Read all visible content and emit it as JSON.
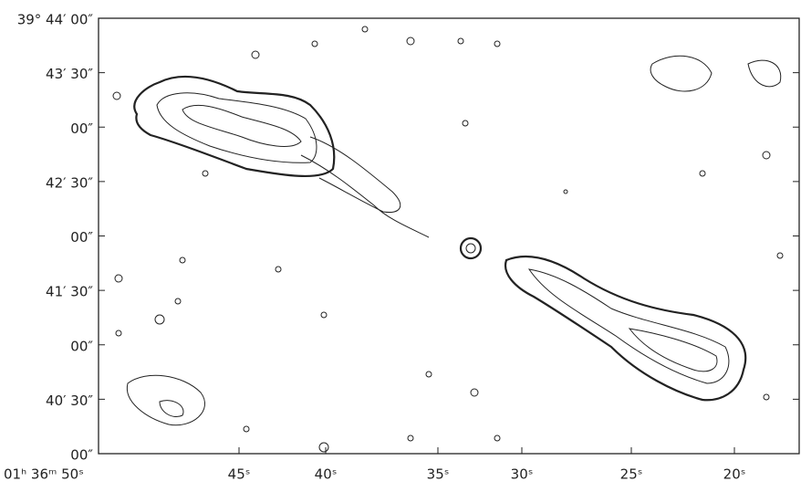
{
  "y_axis_labels": [
    "39° 44′ 00″",
    "43′ 30″",
    "00″",
    "42′ 30″",
    "00″",
    "41′ 30″",
    "00″",
    "40′ 30″",
    "00″"
  ],
  "x_axis_labels": [
    "01ʰ 36ᵐ 50ˢ",
    "45ˢ",
    "40ˢ",
    "35ˢ",
    "30ˢ",
    "25ˢ",
    "20ˢ"
  ]
}
